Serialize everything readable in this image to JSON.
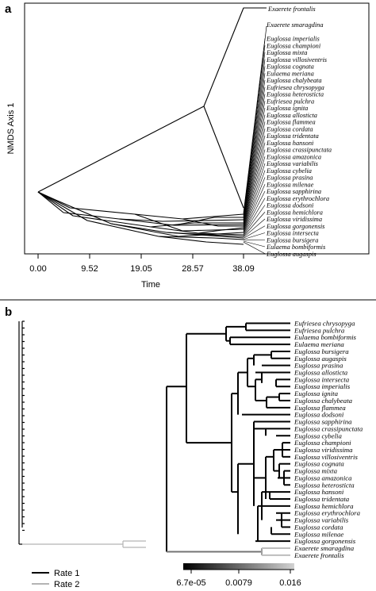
{
  "panel_a": {
    "letter": "a",
    "ylabel": "NMDS Axis 1",
    "xlabel": "Time",
    "x_ticks": [
      "0.00",
      "9.52",
      "19.05",
      "28.57",
      "38.09"
    ],
    "taxa": [
      "Exaerete frontalis",
      "Exaerete smaragdina",
      "Euglossa imperialis",
      "Euglossa championi",
      "Euglossa mixta",
      "Euglossa villosiventris",
      "Euglossa cognata",
      "Eulaema meriana",
      "Euglossa chalybeata",
      "Eufriesea chrysopyga",
      "Euglossa heterosticta",
      "Eufriesea pulchra",
      "Euglossa ignita",
      "Euglossa allosticta",
      "Euglossa flammea",
      "Euglossa cordata",
      "Euglossa tridentata",
      "Euglossa hansoni",
      "Euglossa crassipunctata",
      "Euglossa amazonica",
      "Euglossa variabilis",
      "Euglossa cybelia",
      "Euglossa prasina",
      "Euglossa milenae",
      "Euglossa sapphirina",
      "Euglossa erythrochlora",
      "Euglossa dodsoni",
      "Euglossa hemichlora",
      "Euglossa viridissima",
      "Euglossa gorgonensis",
      "Euglossa intersecta",
      "Euglossa bursigera",
      "Eulaema bombiformis",
      "Euglossa augaspis"
    ]
  },
  "panel_b": {
    "letter": "b",
    "taxa": [
      "Eufriesea chrysopyga",
      "Eufriesea pulchra",
      "Eulaema bombiformis",
      "Eulaema meriana",
      "Euglossa bursigera",
      "Euglossa augaspis",
      "Euglossa prasina",
      "Euglossa allosticta",
      "Euglossa intersecta",
      "Euglossa imperialis",
      "Euglossa ignita",
      "Euglossa chalybeata",
      "Euglossa flammea",
      "Euglossa dodsoni",
      "Euglossa sapphirina",
      "Euglossa crassipunctata",
      "Euglossa cybelia",
      "Euglossa championi",
      "Euglossa viridissima",
      "Euglossa villosiventris",
      "Euglossa cognata",
      "Euglossa mixta",
      "Euglossa amazonica",
      "Euglossa heterosticta",
      "Euglossa hansoni",
      "Euglossa tridentata",
      "Euglossa hemichlora",
      "Euglossa erythrochlora",
      "Euglossa variabilis",
      "Euglossa cordata",
      "Euglossa milenae",
      "Euglossa gorgonensis",
      "Exaerete smaragdina",
      "Exaerete frontalis"
    ],
    "legend": [
      {
        "label": "Rate 1",
        "color": "#000000"
      },
      {
        "label": "Rate 2",
        "color": "#b4b4b4"
      }
    ],
    "colorbar_ticks": [
      "6.7e-05",
      "0.0079",
      "0.016"
    ],
    "colorbar_colors": [
      "#000000",
      "#d2d2d2"
    ]
  }
}
